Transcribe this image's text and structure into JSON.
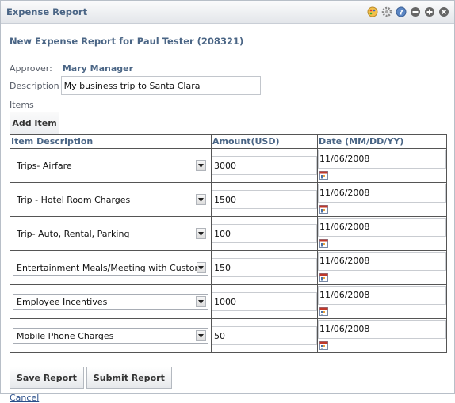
{
  "window": {
    "title": "Expense Report"
  },
  "titlebar_icons": [
    "palette-icon",
    "gear-icon",
    "help-icon",
    "minimize-icon",
    "maximize-icon",
    "close-icon"
  ],
  "heading": "New Expense Report for Paul Tester (208321)",
  "approver": {
    "label": "Approver:",
    "value": "Mary Manager"
  },
  "description": {
    "label": "Description",
    "value": "My business trip to Santa Clara"
  },
  "items_label": "Items",
  "add_item_label": "Add Item",
  "table": {
    "headers": [
      "Item Description",
      "Amount(USD)",
      "Date (MM/DD/YY)"
    ],
    "rows": [
      {
        "description": "Trips- Airfare",
        "amount": "3000",
        "date": "11/06/2008"
      },
      {
        "description": "Trip - Hotel Room Charges",
        "amount": "1500",
        "date": "11/06/2008"
      },
      {
        "description": "Trip- Auto, Rental, Parking",
        "amount": "100",
        "date": "11/06/2008"
      },
      {
        "description": "Entertainment Meals/Meeting with Customer",
        "amount": "150",
        "date": "11/06/2008"
      },
      {
        "description": "Employee Incentives",
        "amount": "1000",
        "date": "11/06/2008"
      },
      {
        "description": "Mobile Phone Charges",
        "amount": "50",
        "date": "11/06/2008"
      }
    ]
  },
  "buttons": {
    "save": "Save Report",
    "submit": "Submit Report",
    "cancel": "Cancel"
  },
  "colors": {
    "heading": "#4a6585",
    "link": "#2a4f8a"
  }
}
